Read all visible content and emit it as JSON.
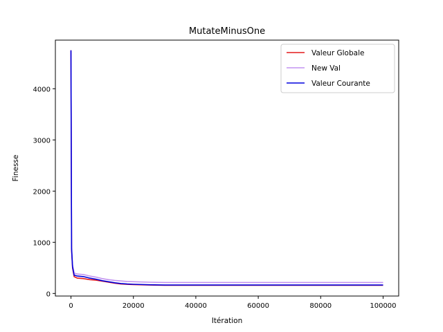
{
  "chart_data": {
    "type": "line",
    "title": "MutateMinusOne",
    "xlabel": "Itération",
    "ylabel": "Finesse",
    "xlim": [
      -5000,
      105000
    ],
    "ylim": [
      -50,
      4950
    ],
    "xticks": [
      0,
      20000,
      40000,
      60000,
      80000,
      100000
    ],
    "yticks": [
      0,
      1000,
      2000,
      3000,
      4000
    ],
    "grid": false,
    "legend_position": "top-right",
    "series": [
      {
        "name": "Valeur Globale",
        "color": "#e41a1c",
        "x": [
          0,
          200,
          500,
          1000,
          2000,
          4000,
          6000,
          8000,
          10000,
          12000,
          14000,
          16000,
          18000,
          20000,
          25000,
          30000,
          40000,
          50000,
          60000,
          70000,
          80000,
          90000,
          100000
        ],
        "y": [
          4750,
          850,
          500,
          330,
          300,
          290,
          270,
          260,
          240,
          220,
          200,
          185,
          178,
          175,
          165,
          160,
          160,
          160,
          160,
          160,
          160,
          160,
          160
        ]
      },
      {
        "name": "New Val",
        "color": "#c293f0",
        "x": [
          0,
          200,
          500,
          1000,
          2000,
          4000,
          6000,
          8000,
          10000,
          12000,
          14000,
          16000,
          18000,
          20000,
          25000,
          30000,
          40000,
          50000,
          60000,
          70000,
          80000,
          90000,
          100000
        ],
        "y": [
          4750,
          900,
          560,
          400,
          380,
          370,
          340,
          320,
          290,
          270,
          255,
          245,
          235,
          230,
          220,
          215,
          215,
          215,
          215,
          215,
          215,
          215,
          215
        ]
      },
      {
        "name": "Valeur Courante",
        "color": "#0000dd",
        "x": [
          0,
          200,
          500,
          1000,
          2000,
          4000,
          6000,
          8000,
          10000,
          12000,
          14000,
          16000,
          18000,
          20000,
          25000,
          30000,
          40000,
          50000,
          60000,
          70000,
          80000,
          90000,
          100000
        ],
        "y": [
          4750,
          880,
          520,
          360,
          340,
          330,
          300,
          280,
          250,
          230,
          210,
          195,
          185,
          180,
          170,
          165,
          165,
          165,
          165,
          165,
          165,
          165,
          165
        ]
      }
    ]
  }
}
